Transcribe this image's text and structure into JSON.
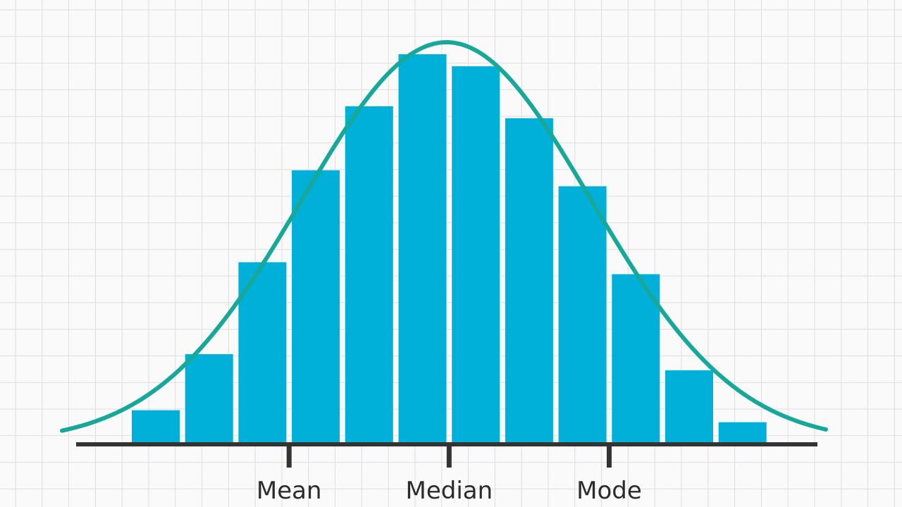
{
  "chart_data": {
    "type": "bar",
    "title": "",
    "xlabel": "",
    "ylabel": "",
    "values": [
      0.08,
      0.22,
      0.45,
      0.68,
      0.84,
      0.97,
      0.94,
      0.81,
      0.64,
      0.42,
      0.18,
      0.05
    ],
    "ylim": [
      0,
      1
    ],
    "overlay": "normal-curve",
    "ticks": [
      {
        "label": "Mean",
        "at_bar": 3
      },
      {
        "label": "Median",
        "at_bar": 6
      },
      {
        "label": "Mode",
        "at_bar": 9
      }
    ],
    "grid": true,
    "colors": {
      "bar": "#00b0d9",
      "curve": "#17a89a",
      "axis": "#333333",
      "grid": "#dedede",
      "background": "#fafafa"
    }
  }
}
